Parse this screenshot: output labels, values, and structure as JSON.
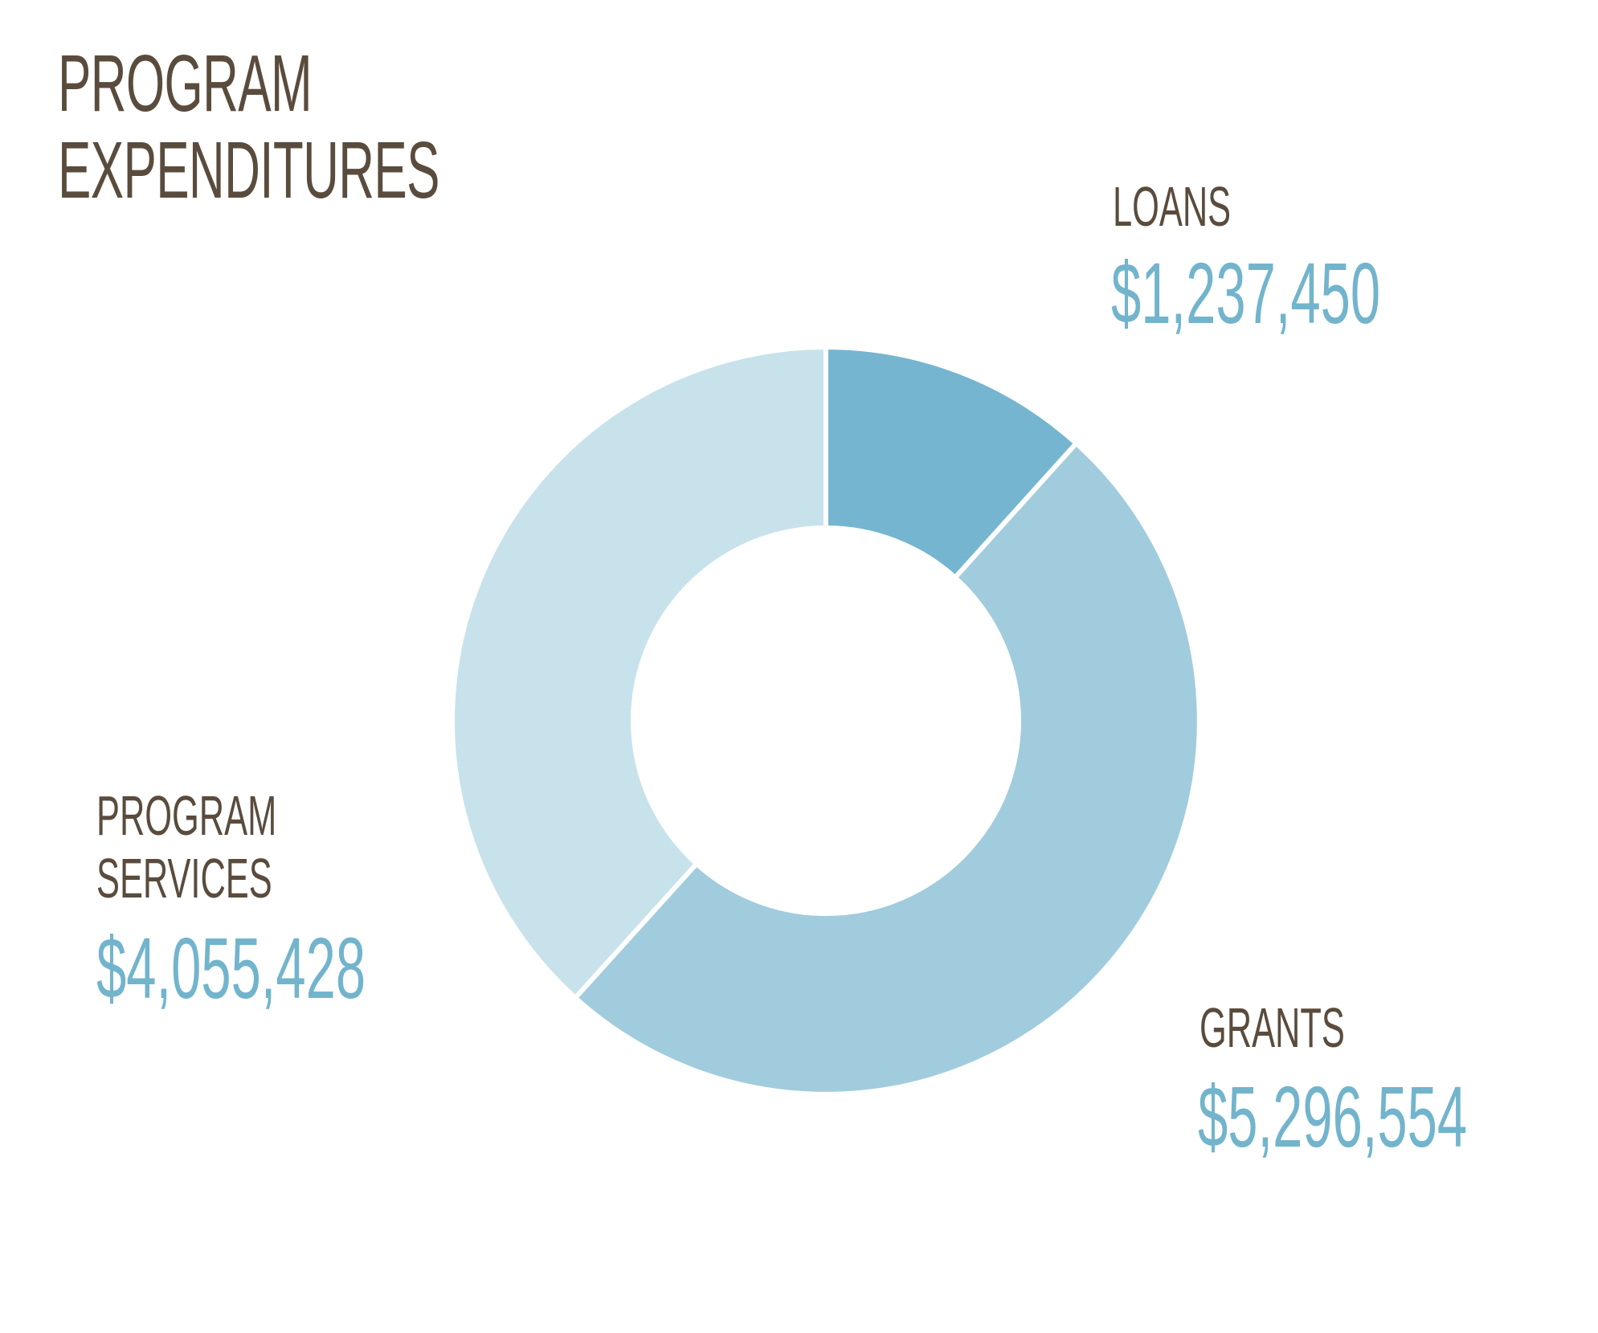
{
  "page": {
    "title_line1": "PROGRAM",
    "title_line2": "EXPENDITURES"
  },
  "chart_data": {
    "type": "pie",
    "variant": "donut",
    "title": "PROGRAM EXPENDITURES",
    "categories": [
      "LOANS",
      "GRANTS",
      "PROGRAM SERVICES"
    ],
    "values": [
      1237450,
      5296554,
      4055428
    ],
    "labels": [
      "$1,237,450",
      "$5,296,554",
      "$4,055,428"
    ],
    "program_services_label_line1": "PROGRAM",
    "program_services_label_line2": "SERVICES",
    "colors": [
      "#76b5cf",
      "#a1ccdd",
      "#c8e2ec"
    ],
    "text_color": "#5a4c3d",
    "value_color": "#73b4cd"
  }
}
